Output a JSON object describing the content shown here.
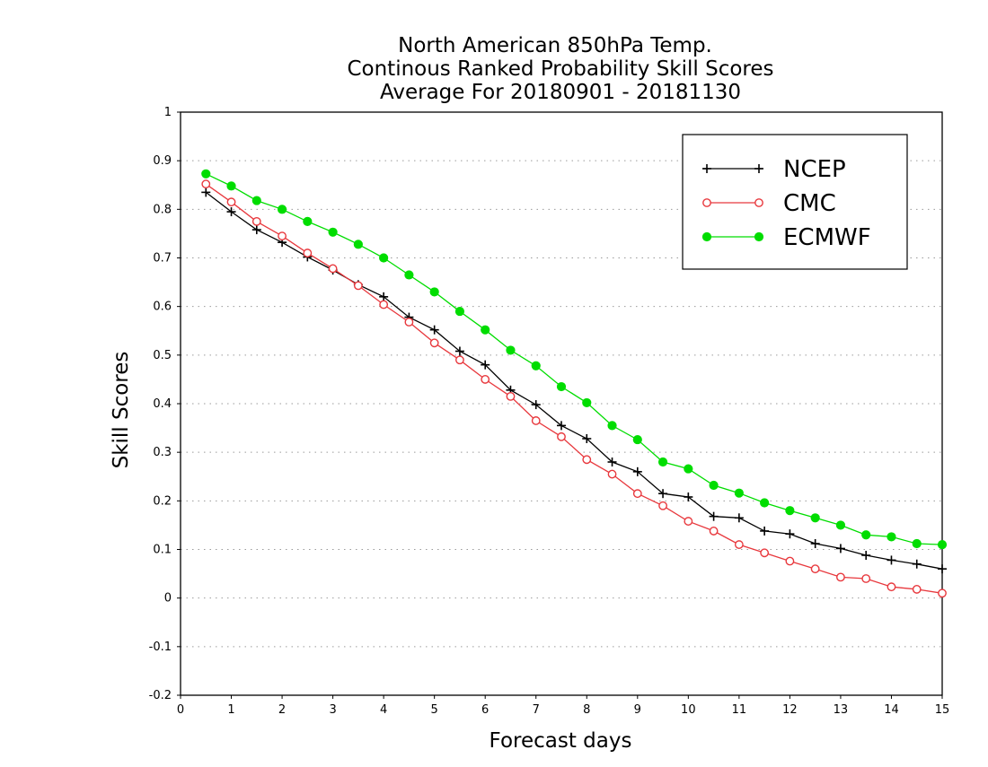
{
  "chart_data": {
    "type": "line",
    "title": [
      "North American 850hPa Temp.",
      "Continous Ranked Probability Skill Scores",
      "Average For 20180901 - 20181130"
    ],
    "xlabel": "Forecast days",
    "ylabel": "Skill Scores",
    "xlim": [
      0,
      15
    ],
    "ylim": [
      -0.2,
      1
    ],
    "xticks": [
      0,
      1,
      2,
      3,
      4,
      5,
      6,
      7,
      8,
      9,
      10,
      11,
      12,
      13,
      14,
      15
    ],
    "yticks": [
      -0.2,
      -0.1,
      0,
      0.1,
      0.2,
      0.3,
      0.4,
      0.5,
      0.6,
      0.7,
      0.8,
      0.9,
      1
    ],
    "ytick_labels": [
      "-0.2",
      "-0.1",
      "0",
      "0.1",
      "0.2",
      "0.3",
      "0.4",
      "0.5",
      "0.6",
      "0.7",
      "0.8",
      "0.9",
      "1"
    ],
    "grid": "horizontal-dotted",
    "legend_position": "top-right",
    "x": [
      0.5,
      1,
      1.5,
      2,
      2.5,
      3,
      3.5,
      4,
      4.5,
      5,
      5.5,
      6,
      6.5,
      7,
      7.5,
      8,
      8.5,
      9,
      9.5,
      10,
      10.5,
      11,
      11.5,
      12,
      12.5,
      13,
      13.5,
      14,
      14.5,
      15
    ],
    "series": [
      {
        "name": "NCEP",
        "color": "#000000",
        "marker": "plus",
        "values": [
          0.835,
          0.795,
          0.758,
          0.732,
          0.702,
          0.675,
          0.645,
          0.62,
          0.578,
          0.552,
          0.508,
          0.48,
          0.428,
          0.398,
          0.355,
          0.328,
          0.28,
          0.26,
          0.215,
          0.208,
          0.168,
          0.165,
          0.138,
          0.132,
          0.112,
          0.102,
          0.088,
          0.078,
          0.07,
          0.06
        ]
      },
      {
        "name": "CMC",
        "color": "#e8383d",
        "marker": "open-circle",
        "values": [
          0.852,
          0.815,
          0.775,
          0.745,
          0.71,
          0.678,
          0.643,
          0.604,
          0.568,
          0.525,
          0.49,
          0.45,
          0.415,
          0.365,
          0.332,
          0.285,
          0.255,
          0.215,
          0.19,
          0.158,
          0.138,
          0.11,
          0.093,
          0.076,
          0.06,
          0.043,
          0.04,
          0.023,
          0.018,
          0.01
        ]
      },
      {
        "name": "ECMWF",
        "color": "#00dd00",
        "marker": "filled-circle",
        "values": [
          0.873,
          0.848,
          0.818,
          0.8,
          0.775,
          0.753,
          0.728,
          0.7,
          0.665,
          0.63,
          0.59,
          0.552,
          0.51,
          0.478,
          0.435,
          0.402,
          0.355,
          0.326,
          0.28,
          0.266,
          0.232,
          0.216,
          0.196,
          0.18,
          0.165,
          0.15,
          0.13,
          0.126,
          0.112,
          0.11
        ]
      }
    ]
  }
}
